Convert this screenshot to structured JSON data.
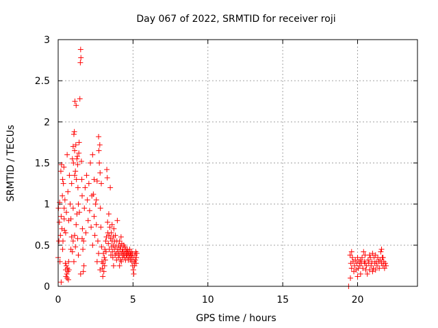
{
  "chart_data": {
    "type": "scatter",
    "title": "Day 067 of 2022, SRMTID for receiver roji",
    "xlabel": "GPS time / hours",
    "ylabel": "SRMTID / TECUs",
    "xlim": [
      0,
      24
    ],
    "ylim": [
      0,
      3
    ],
    "xticks": [
      0,
      5,
      10,
      15,
      20
    ],
    "yticks": [
      0,
      0.5,
      1,
      1.5,
      2,
      2.5,
      3
    ],
    "xtick_labels": [
      "0",
      "5",
      "10",
      "15",
      "20"
    ],
    "ytick_labels": [
      "0",
      "0.5",
      "1",
      "1.5",
      "2",
      "2.5",
      "3"
    ],
    "grid": true,
    "marker": "+",
    "color": "#ff0000",
    "series": [
      {
        "name": "SRMTID",
        "points": [
          [
            0.0,
            0.35
          ],
          [
            0.02,
            0.95
          ],
          [
            0.05,
            0.55
          ],
          [
            0.08,
            0.78
          ],
          [
            0.1,
            1.02
          ],
          [
            0.12,
            0.3
          ],
          [
            0.15,
            0.62
          ],
          [
            0.18,
            1.4
          ],
          [
            0.2,
            0.85
          ],
          [
            0.22,
            1.48
          ],
          [
            0.25,
            0.7
          ],
          [
            0.28,
            1.1
          ],
          [
            0.3,
            1.3
          ],
          [
            0.32,
            0.55
          ],
          [
            0.35,
            1.25
          ],
          [
            0.38,
            1.45
          ],
          [
            0.4,
            0.95
          ],
          [
            0.42,
            0.68
          ],
          [
            0.45,
            1.05
          ],
          [
            0.48,
            0.28
          ],
          [
            0.5,
            0.2
          ],
          [
            0.52,
            0.12
          ],
          [
            0.55,
            0.25
          ],
          [
            0.58,
            0.15
          ],
          [
            0.6,
            0.1
          ],
          [
            0.62,
            0.22
          ],
          [
            0.65,
            0.18
          ],
          [
            0.68,
            0.08
          ],
          [
            0.7,
            0.3
          ],
          [
            0.72,
            0.2
          ],
          [
            0.5,
            0.65
          ],
          [
            0.55,
            0.9
          ],
          [
            0.6,
            1.6
          ],
          [
            0.65,
            1.15
          ],
          [
            0.7,
            0.8
          ],
          [
            0.75,
            1.35
          ],
          [
            0.8,
            1.0
          ],
          [
            0.85,
            0.82
          ],
          [
            0.9,
            1.25
          ],
          [
            0.95,
            1.55
          ],
          [
            1.0,
            1.7
          ],
          [
            1.02,
            1.5
          ],
          [
            1.05,
            1.85
          ],
          [
            1.08,
            1.88
          ],
          [
            1.1,
            1.65
          ],
          [
            1.12,
            2.25
          ],
          [
            1.15,
            1.4
          ],
          [
            1.18,
            1.72
          ],
          [
            1.2,
            2.2
          ],
          [
            1.22,
            1.3
          ],
          [
            1.25,
            1.55
          ],
          [
            1.28,
            1.58
          ],
          [
            1.3,
            1.48
          ],
          [
            1.32,
            1.2
          ],
          [
            1.35,
            1.0
          ],
          [
            1.38,
            1.62
          ],
          [
            1.4,
            1.75
          ],
          [
            1.42,
            0.9
          ],
          [
            1.45,
            2.28
          ],
          [
            1.48,
            2.72
          ],
          [
            1.5,
            2.88
          ],
          [
            1.52,
            2.78
          ],
          [
            1.55,
            1.52
          ],
          [
            1.58,
            1.3
          ],
          [
            1.6,
            1.1
          ],
          [
            1.62,
            0.7
          ],
          [
            1.65,
            0.45
          ],
          [
            1.68,
            0.18
          ],
          [
            1.7,
            0.55
          ],
          [
            1.72,
            0.25
          ],
          [
            0.9,
            0.6
          ],
          [
            0.95,
            0.42
          ],
          [
            1.0,
            0.55
          ],
          [
            1.05,
            0.3
          ],
          [
            1.1,
            0.62
          ],
          [
            1.15,
            0.48
          ],
          [
            1.2,
            0.75
          ],
          [
            1.25,
            0.88
          ],
          [
            1.3,
            0.58
          ],
          [
            1.35,
            0.38
          ],
          [
            1.75,
            0.95
          ],
          [
            1.8,
            1.2
          ],
          [
            1.85,
            0.65
          ],
          [
            1.9,
            1.35
          ],
          [
            1.95,
            1.05
          ],
          [
            2.0,
            0.8
          ],
          [
            2.05,
            1.25
          ],
          [
            2.1,
            0.92
          ],
          [
            2.15,
            1.5
          ],
          [
            2.2,
            0.72
          ],
          [
            2.25,
            1.1
          ],
          [
            2.3,
            0.5
          ],
          [
            2.35,
            1.12
          ],
          [
            2.4,
            0.85
          ],
          [
            2.45,
            0.62
          ],
          [
            2.5,
            1.0
          ],
          [
            2.55,
            0.75
          ],
          [
            2.6,
            1.28
          ],
          [
            2.65,
            0.55
          ],
          [
            2.7,
            1.82
          ],
          [
            2.72,
            1.65
          ],
          [
            2.75,
            1.5
          ],
          [
            2.78,
            1.72
          ],
          [
            2.8,
            1.38
          ],
          [
            2.82,
            0.95
          ],
          [
            2.85,
            0.72
          ],
          [
            2.88,
            1.25
          ],
          [
            2.9,
            0.48
          ],
          [
            2.92,
            0.3
          ],
          [
            2.95,
            0.22
          ],
          [
            2.98,
            0.12
          ],
          [
            3.0,
            0.28
          ],
          [
            3.02,
            0.4
          ],
          [
            3.05,
            0.18
          ],
          [
            3.08,
            0.35
          ],
          [
            3.1,
            0.25
          ],
          [
            3.12,
            0.45
          ],
          [
            3.15,
            0.32
          ],
          [
            3.18,
            0.55
          ],
          [
            3.2,
            0.42
          ],
          [
            3.22,
            0.6
          ],
          [
            3.25,
            1.42
          ],
          [
            3.28,
            1.32
          ],
          [
            3.3,
            0.78
          ],
          [
            3.32,
            0.65
          ],
          [
            3.35,
            0.52
          ],
          [
            3.38,
            0.88
          ],
          [
            3.4,
            0.62
          ],
          [
            3.42,
            0.45
          ],
          [
            3.45,
            0.72
          ],
          [
            3.48,
            1.2
          ],
          [
            3.5,
            0.58
          ],
          [
            3.52,
            0.38
          ],
          [
            3.55,
            0.65
          ],
          [
            3.58,
            0.48
          ],
          [
            3.6,
            0.55
          ],
          [
            3.62,
            0.42
          ],
          [
            3.65,
            0.35
          ],
          [
            3.68,
            0.6
          ],
          [
            3.7,
            0.5
          ],
          [
            3.72,
            0.7
          ],
          [
            3.75,
            0.45
          ],
          [
            3.78,
            0.55
          ],
          [
            3.8,
            0.38
          ],
          [
            3.82,
            0.62
          ],
          [
            3.85,
            0.48
          ],
          [
            3.88,
            0.4
          ],
          [
            3.9,
            0.32
          ],
          [
            3.92,
            0.55
          ],
          [
            3.95,
            0.8
          ],
          [
            3.98,
            0.45
          ],
          [
            4.0,
            0.42
          ],
          [
            4.02,
            0.35
          ],
          [
            4.05,
            0.5
          ],
          [
            4.08,
            0.38
          ],
          [
            4.1,
            0.55
          ],
          [
            4.12,
            0.45
          ],
          [
            4.15,
            0.32
          ],
          [
            4.18,
            0.48
          ],
          [
            4.2,
            0.4
          ],
          [
            4.22,
            0.3
          ],
          [
            4.25,
            0.52
          ],
          [
            4.28,
            0.42
          ],
          [
            4.3,
            0.35
          ],
          [
            4.32,
            0.45
          ],
          [
            4.35,
            0.38
          ],
          [
            4.38,
            0.5
          ],
          [
            4.4,
            0.42
          ],
          [
            4.42,
            0.35
          ],
          [
            4.45,
            0.48
          ],
          [
            4.48,
            0.4
          ],
          [
            4.5,
            0.32
          ],
          [
            4.52,
            0.45
          ],
          [
            4.55,
            0.38
          ],
          [
            4.58,
            0.42
          ],
          [
            4.6,
            0.35
          ],
          [
            4.62,
            0.45
          ],
          [
            4.65,
            0.4
          ],
          [
            4.68,
            0.32
          ],
          [
            4.7,
            0.42
          ],
          [
            4.72,
            0.38
          ],
          [
            4.75,
            0.35
          ],
          [
            4.78,
            0.45
          ],
          [
            4.8,
            0.4
          ],
          [
            4.82,
            0.32
          ],
          [
            4.85,
            0.38
          ],
          [
            4.88,
            0.42
          ],
          [
            4.9,
            0.35
          ],
          [
            4.92,
            0.3
          ],
          [
            4.95,
            0.4
          ],
          [
            4.98,
            0.25
          ],
          [
            5.0,
            0.35
          ],
          [
            5.02,
            0.2
          ],
          [
            5.05,
            0.15
          ],
          [
            5.08,
            0.3
          ],
          [
            5.1,
            0.25
          ],
          [
            5.12,
            0.38
          ],
          [
            5.15,
            0.32
          ],
          [
            5.18,
            0.42
          ],
          [
            5.2,
            0.28
          ],
          [
            5.22,
            0.35
          ],
          [
            5.25,
            0.4
          ],
          [
            2.3,
            1.6
          ],
          [
            2.4,
            1.3
          ],
          [
            2.55,
            1.05
          ],
          [
            2.6,
            0.3
          ],
          [
            2.7,
            0.4
          ],
          [
            2.8,
            0.2
          ],
          [
            3.6,
            0.75
          ],
          [
            3.7,
            0.25
          ],
          [
            4.1,
            0.25
          ],
          [
            4.2,
            0.6
          ],
          [
            0.3,
            0.45
          ],
          [
            0.4,
            0.82
          ],
          [
            0.2,
            0.05
          ],
          [
            1.5,
            0.15
          ],
          [
            1.6,
            0.58
          ],
          [
            1.0,
            0.95
          ],
          [
            1.1,
            1.35
          ],
          [
            0.85,
            0.45
          ],
          [
            19.4,
            0.0
          ],
          [
            19.5,
            0.38
          ],
          [
            19.55,
            0.28
          ],
          [
            19.6,
            0.22
          ],
          [
            19.65,
            0.35
          ],
          [
            19.7,
            0.3
          ],
          [
            19.75,
            0.18
          ],
          [
            19.8,
            0.25
          ],
          [
            19.85,
            0.32
          ],
          [
            19.9,
            0.2
          ],
          [
            19.95,
            0.28
          ],
          [
            20.0,
            0.35
          ],
          [
            20.05,
            0.22
          ],
          [
            20.1,
            0.3
          ],
          [
            20.15,
            0.25
          ],
          [
            20.2,
            0.15
          ],
          [
            20.25,
            0.28
          ],
          [
            20.3,
            0.35
          ],
          [
            20.35,
            0.22
          ],
          [
            20.4,
            0.42
          ],
          [
            20.45,
            0.3
          ],
          [
            20.5,
            0.38
          ],
          [
            20.55,
            0.2
          ],
          [
            20.6,
            0.25
          ],
          [
            20.65,
            0.15
          ],
          [
            20.7,
            0.32
          ],
          [
            20.75,
            0.28
          ],
          [
            20.8,
            0.2
          ],
          [
            20.85,
            0.35
          ],
          [
            20.9,
            0.25
          ],
          [
            20.95,
            0.3
          ],
          [
            21.0,
            0.4
          ],
          [
            21.05,
            0.22
          ],
          [
            21.1,
            0.35
          ],
          [
            21.15,
            0.28
          ],
          [
            21.2,
            0.38
          ],
          [
            21.25,
            0.3
          ],
          [
            21.3,
            0.25
          ],
          [
            21.35,
            0.35
          ],
          [
            21.4,
            0.3
          ],
          [
            21.45,
            0.22
          ],
          [
            21.5,
            0.32
          ],
          [
            21.55,
            0.42
          ],
          [
            21.6,
            0.28
          ],
          [
            21.65,
            0.35
          ],
          [
            21.7,
            0.25
          ],
          [
            21.75,
            0.3
          ],
          [
            21.8,
            0.22
          ],
          [
            21.85,
            0.28
          ],
          [
            21.9,
            0.25
          ],
          [
            19.52,
            0.1
          ],
          [
            19.6,
            0.42
          ],
          [
            20.0,
            0.12
          ],
          [
            20.2,
            0.32
          ],
          [
            20.5,
            0.28
          ],
          [
            21.0,
            0.18
          ],
          [
            21.2,
            0.2
          ],
          [
            21.6,
            0.45
          ],
          [
            21.7,
            0.35
          ],
          [
            20.8,
            0.38
          ]
        ]
      }
    ]
  }
}
